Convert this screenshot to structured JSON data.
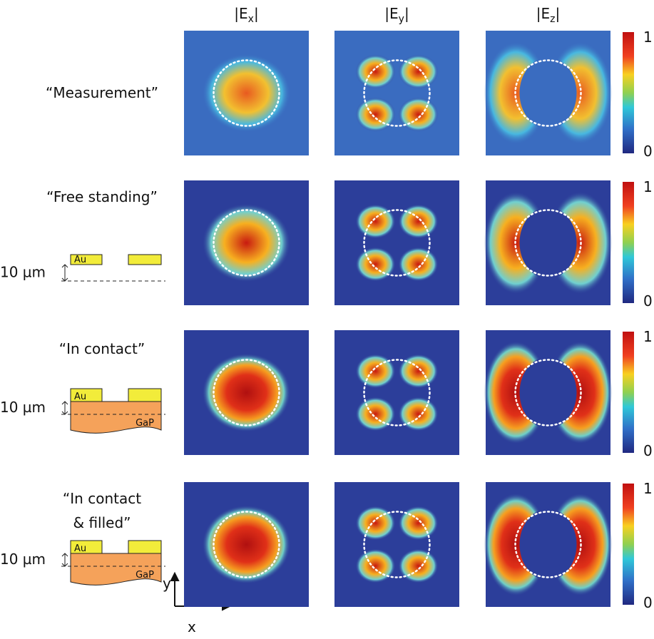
{
  "column_headers": [
    {
      "main": "|E",
      "sub": "x",
      "close": "|"
    },
    {
      "main": "|E",
      "sub": "y",
      "close": "|"
    },
    {
      "main": "|E",
      "sub": "z",
      "close": "|"
    }
  ],
  "rows": [
    {
      "label": [
        "“Measurement”"
      ]
    },
    {
      "label": [
        "“Free standing”"
      ],
      "schematic": {
        "thickness": "10 µm",
        "metal": "Au"
      }
    },
    {
      "label": [
        "“In contact”"
      ],
      "schematic": {
        "thickness": "10 µm",
        "metal": "Au",
        "substrate": "GaP"
      }
    },
    {
      "label": [
        "“In contact",
        "& filled”"
      ],
      "schematic": {
        "thickness": "10 µm",
        "metal": "Au",
        "substrate": "GaP"
      }
    }
  ],
  "colorbar": {
    "max": "1",
    "min": "0"
  },
  "axes": {
    "y": "y",
    "x": "x"
  }
}
